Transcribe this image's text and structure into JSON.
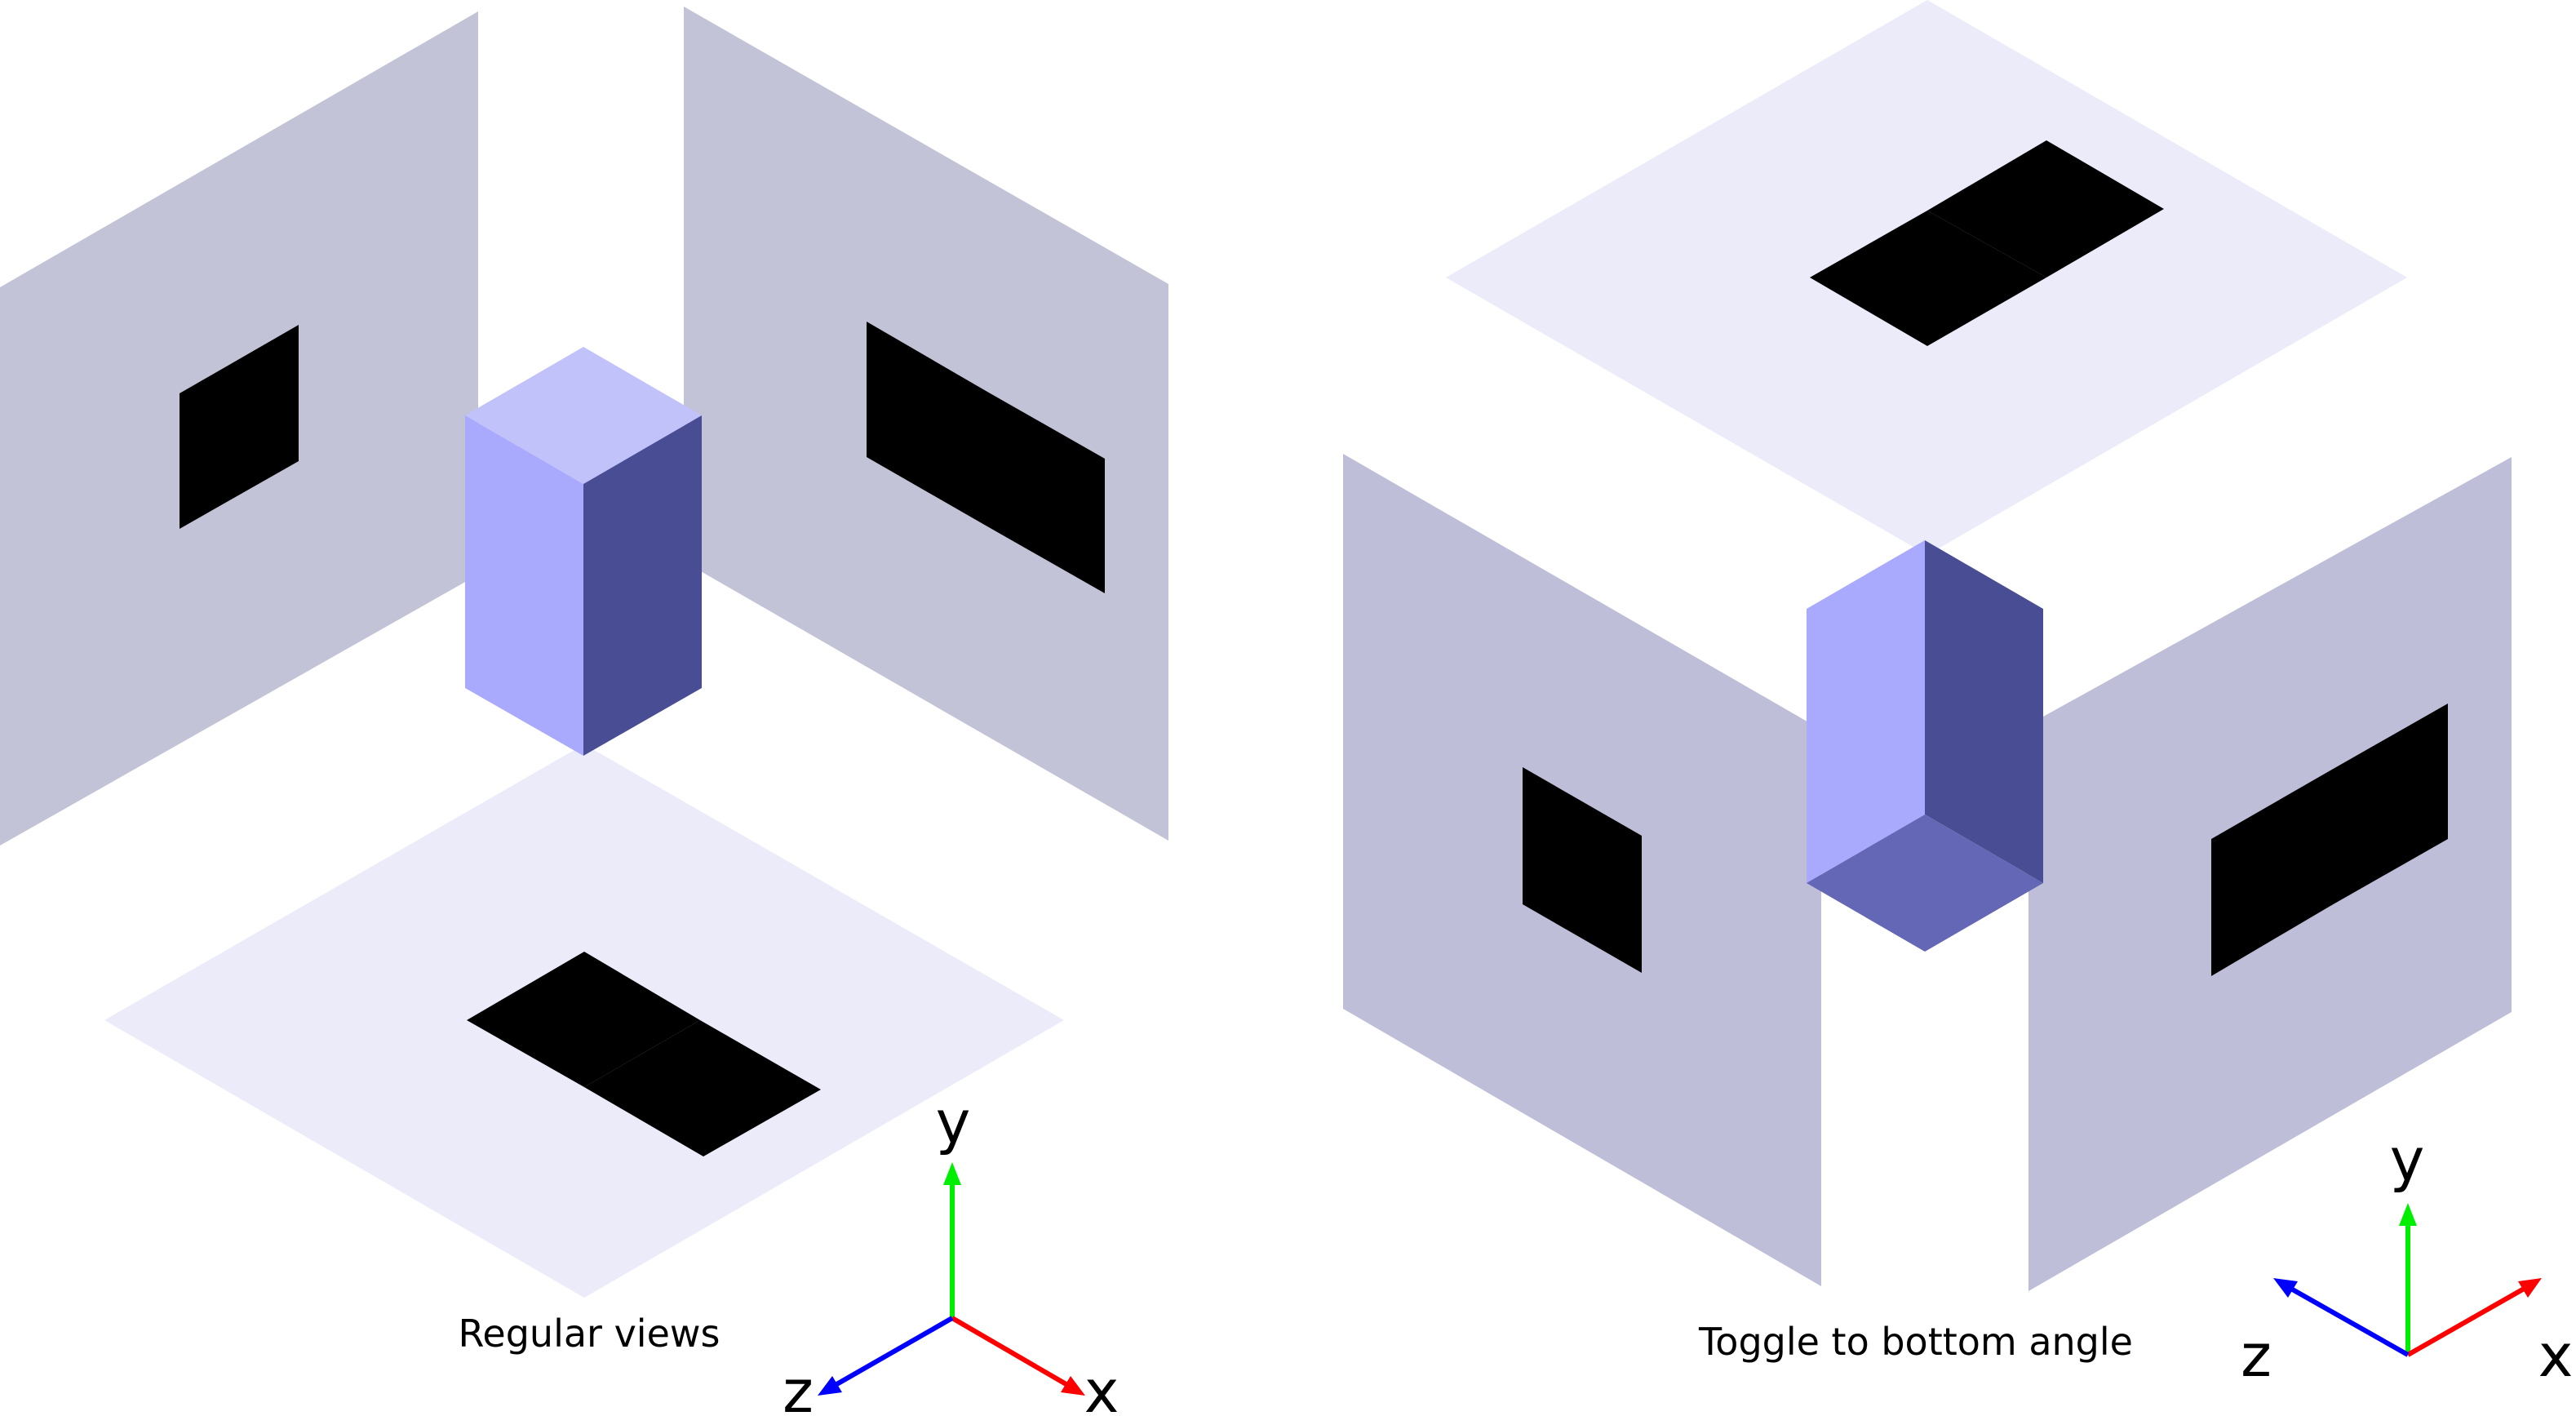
{
  "panels": [
    {
      "caption": "Regular views",
      "axes": {
        "x": "x",
        "y": "y",
        "z": "z"
      }
    },
    {
      "caption": "Toggle to bottom angle",
      "axes": {
        "x": "x",
        "y": "y",
        "z": "z"
      }
    }
  ],
  "colors": {
    "wall": "#c3c3d8",
    "floor": "#ebebfa",
    "box_top": "#c2c2fa",
    "box_left": "#a9a9fe",
    "box_right": "#494d93",
    "box_bottom": "#6466b6",
    "shadow": "#000000",
    "axis_x": "#ff0000",
    "axis_y": "#00ee00",
    "axis_z": "#0000ff",
    "background": "#ffffff"
  }
}
